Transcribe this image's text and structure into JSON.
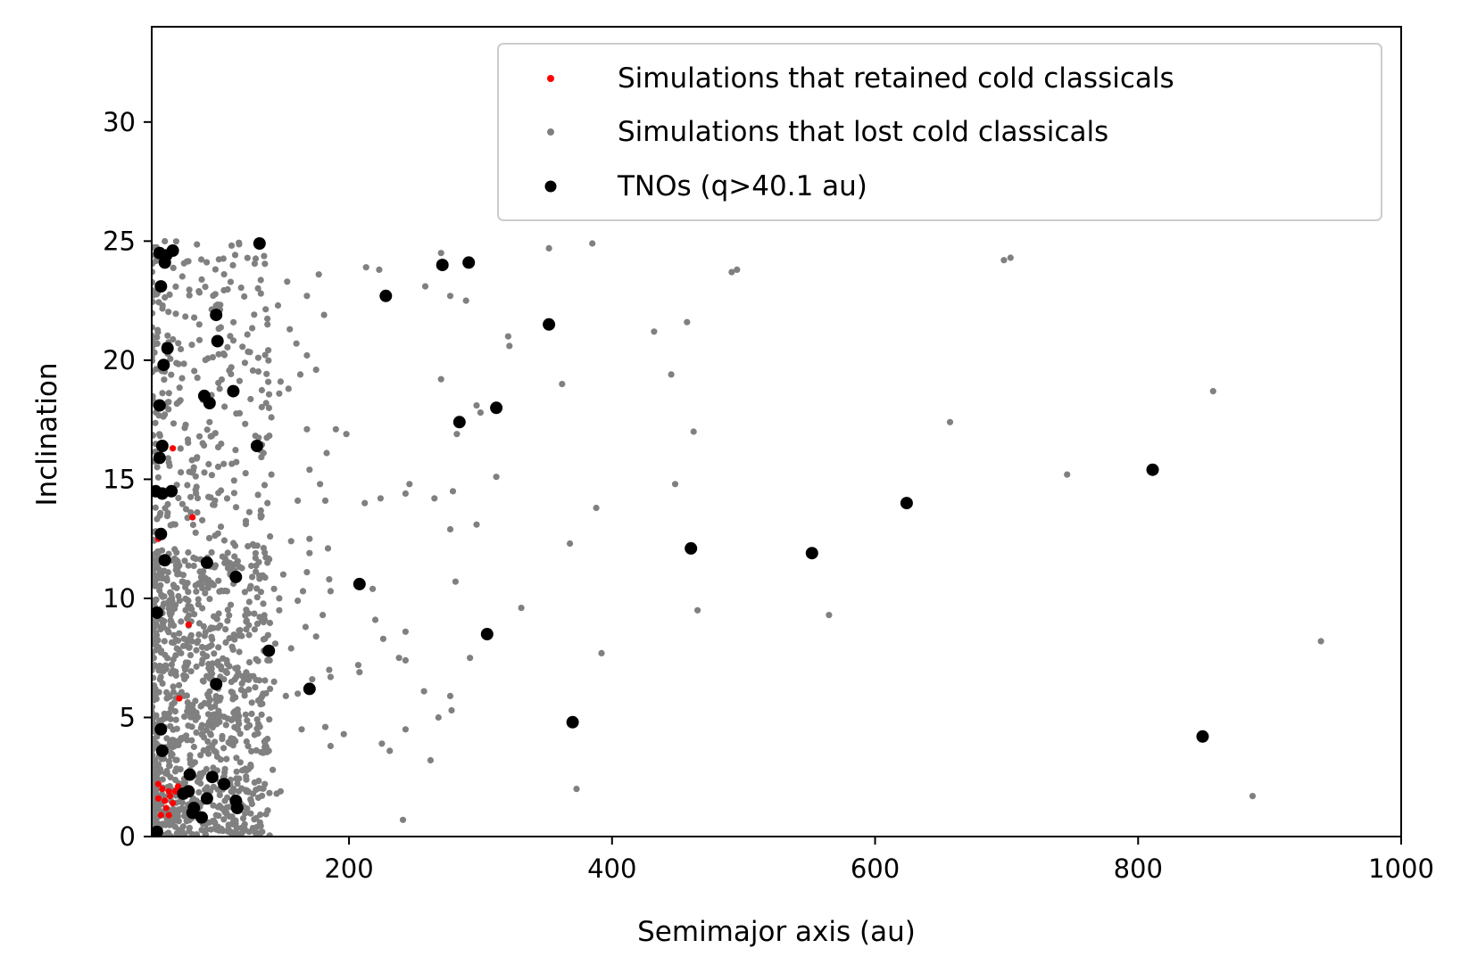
{
  "chart_data": {
    "type": "scatter",
    "title": "",
    "xlabel": "Semimajor axis (au)",
    "ylabel": "Inclination",
    "xlim": [
      50,
      1000
    ],
    "ylim": [
      0,
      34
    ],
    "xticks": [
      200,
      400,
      600,
      800,
      1000
    ],
    "yticks": [
      0,
      5,
      10,
      15,
      20,
      25,
      30
    ],
    "grid": false,
    "legend_position": "top-right",
    "series": [
      {
        "name": "Simulations that lost cold classicals",
        "color": "#808080",
        "marker_size": "small",
        "dense_band": {
          "x_range": [
            50,
            140
          ],
          "y_range": [
            0,
            25
          ],
          "count": 1300,
          "density_description": "heavy concentration at a < 140 au"
        },
        "points": [
          [
            223,
            23.8
          ],
          [
            213,
            23.9
          ],
          [
            177,
            23.6
          ],
          [
            168,
            22.7
          ],
          [
            153,
            23.3
          ],
          [
            138,
            21.5
          ],
          [
            146,
            22.3
          ],
          [
            155,
            21.3
          ],
          [
            160,
            20.7
          ],
          [
            168,
            20.2
          ],
          [
            181,
            21.9
          ],
          [
            175,
            19.6
          ],
          [
            163,
            19.4
          ],
          [
            154,
            18.8
          ],
          [
            148,
            19.1
          ],
          [
            190,
            17.1
          ],
          [
            198,
            16.9
          ],
          [
            168,
            17.1
          ],
          [
            183,
            16.1
          ],
          [
            170,
            15.4
          ],
          [
            178,
            14.8
          ],
          [
            161,
            14.1
          ],
          [
            182,
            14.1
          ],
          [
            212,
            14.0
          ],
          [
            224,
            14.2
          ],
          [
            243,
            14.4
          ],
          [
            246,
            14.8
          ],
          [
            265,
            14.2
          ],
          [
            279,
            14.5
          ],
          [
            282,
            16.9
          ],
          [
            300,
            17.8
          ],
          [
            297,
            18.1
          ],
          [
            321,
            21.0
          ],
          [
            322,
            20.6
          ],
          [
            312,
            15.1
          ],
          [
            270,
            19.2
          ],
          [
            258,
            23.1
          ],
          [
            270,
            24.5
          ],
          [
            277,
            22.7
          ],
          [
            289,
            22.5
          ],
          [
            352,
            24.7
          ],
          [
            385,
            24.9
          ],
          [
            362,
            19.0
          ],
          [
            388,
            13.8
          ],
          [
            368,
            12.3
          ],
          [
            281,
            10.7
          ],
          [
            277,
            12.9
          ],
          [
            297,
            13.1
          ],
          [
            218,
            10.4
          ],
          [
            220,
            9.1
          ],
          [
            226,
            8.3
          ],
          [
            243,
            8.6
          ],
          [
            238,
            7.5
          ],
          [
            243,
            7.4
          ],
          [
            207,
            7.2
          ],
          [
            208,
            6.9
          ],
          [
            185,
            7.0
          ],
          [
            186,
            6.7
          ],
          [
            172,
            6.6
          ],
          [
            175,
            8.4
          ],
          [
            180,
            9.3
          ],
          [
            167,
            8.8
          ],
          [
            185,
            10.8
          ],
          [
            186,
            10.3
          ],
          [
            170,
            11.9
          ],
          [
            184,
            12.1
          ],
          [
            170,
            12.5
          ],
          [
            168,
            11.1
          ],
          [
            165,
            10.3
          ],
          [
            161,
            9.9
          ],
          [
            150,
            11.0
          ],
          [
            156,
            12.4
          ],
          [
            147,
            9.5
          ],
          [
            156,
            7.9
          ],
          [
            152,
            5.9
          ],
          [
            161,
            6.0
          ],
          [
            164,
            4.5
          ],
          [
            182,
            4.6
          ],
          [
            186,
            3.8
          ],
          [
            196,
            4.3
          ],
          [
            231,
            3.6
          ],
          [
            225,
            3.9
          ],
          [
            243,
            4.5
          ],
          [
            257,
            6.1
          ],
          [
            268,
            5.0
          ],
          [
            277,
            5.9
          ],
          [
            278,
            5.3
          ],
          [
            292,
            7.5
          ],
          [
            262,
            3.2
          ],
          [
            241,
            0.7
          ],
          [
            373,
            2.0
          ],
          [
            331,
            9.6
          ],
          [
            392,
            7.7
          ],
          [
            432,
            21.2
          ],
          [
            445,
            19.4
          ],
          [
            448,
            14.8
          ],
          [
            457,
            21.6
          ],
          [
            462,
            17.0
          ],
          [
            465,
            9.5
          ],
          [
            491,
            23.7
          ],
          [
            495,
            23.8
          ],
          [
            565,
            9.3
          ],
          [
            657,
            17.4
          ],
          [
            698,
            24.2
          ],
          [
            703,
            24.3
          ],
          [
            746,
            15.2
          ],
          [
            857,
            18.7
          ],
          [
            887,
            1.7
          ],
          [
            939,
            8.2
          ],
          [
            145,
            1.8
          ],
          [
            148,
            1.9
          ],
          [
            139,
            3.6
          ],
          [
            142,
            2.8
          ],
          [
            136,
            2.2
          ],
          [
            138,
            4.1
          ],
          [
            133,
            5.8
          ],
          [
            140,
            6.2
          ],
          [
            143,
            6.5
          ],
          [
            138,
            7.4
          ],
          [
            144,
            8.1
          ],
          [
            136,
            9.1
          ],
          [
            143,
            10.4
          ],
          [
            147,
            10.0
          ],
          [
            138,
            11.5
          ],
          [
            140,
            12.6
          ],
          [
            133,
            13.4
          ],
          [
            138,
            14.0
          ],
          [
            141,
            15.2
          ],
          [
            135,
            16.1
          ],
          [
            141,
            17.6
          ],
          [
            137,
            18.2
          ],
          [
            147,
            18.6
          ],
          [
            131,
            20.1
          ],
          [
            133,
            22.8
          ],
          [
            130,
            0.4
          ],
          [
            134,
            0.2
          ]
        ]
      },
      {
        "name": "Simulations that retained cold classicals",
        "color": "#ff0000",
        "marker_size": "small",
        "points": [
          [
            66,
            16.3
          ],
          [
            81,
            13.4
          ],
          [
            55,
            12.5
          ],
          [
            78,
            8.9
          ],
          [
            71,
            5.8
          ],
          [
            55,
            2.2
          ],
          [
            58,
            2.0
          ],
          [
            63,
            1.9
          ],
          [
            55,
            1.6
          ],
          [
            60,
            1.5
          ],
          [
            64,
            1.7
          ],
          [
            68,
            1.9
          ],
          [
            61,
            1.2
          ],
          [
            66,
            1.4
          ],
          [
            57,
            0.9
          ],
          [
            63,
            0.9
          ],
          [
            70,
            2.1
          ],
          [
            73,
            1.7
          ]
        ]
      },
      {
        "name": "TNOs (q>40.1 au)",
        "color": "#000000",
        "marker_size": "large",
        "points": [
          [
            56,
            24.5
          ],
          [
            61,
            24.4
          ],
          [
            66,
            24.6
          ],
          [
            60,
            24.1
          ],
          [
            57,
            23.1
          ],
          [
            132,
            24.9
          ],
          [
            228,
            22.7
          ],
          [
            271,
            24.0
          ],
          [
            291,
            24.1
          ],
          [
            99,
            21.9
          ],
          [
            100,
            20.8
          ],
          [
            62,
            20.5
          ],
          [
            59,
            19.8
          ],
          [
            352,
            21.5
          ],
          [
            56,
            18.1
          ],
          [
            90,
            18.5
          ],
          [
            94,
            18.2
          ],
          [
            112,
            18.7
          ],
          [
            284,
            17.4
          ],
          [
            312,
            18.0
          ],
          [
            58,
            16.4
          ],
          [
            56,
            15.9
          ],
          [
            130,
            16.4
          ],
          [
            53,
            14.5
          ],
          [
            58,
            14.4
          ],
          [
            65,
            14.5
          ],
          [
            811,
            15.4
          ],
          [
            624,
            14.0
          ],
          [
            57,
            12.7
          ],
          [
            460,
            12.1
          ],
          [
            552,
            11.9
          ],
          [
            60,
            11.6
          ],
          [
            92,
            11.5
          ],
          [
            114,
            10.9
          ],
          [
            208,
            10.6
          ],
          [
            54,
            9.4
          ],
          [
            305,
            8.5
          ],
          [
            139,
            7.8
          ],
          [
            99,
            6.4
          ],
          [
            170,
            6.2
          ],
          [
            370,
            4.8
          ],
          [
            57,
            4.5
          ],
          [
            58,
            3.6
          ],
          [
            849,
            4.2
          ],
          [
            79,
            2.6
          ],
          [
            96,
            2.5
          ],
          [
            105,
            2.2
          ],
          [
            114,
            1.5
          ],
          [
            115,
            1.2
          ],
          [
            74,
            1.8
          ],
          [
            78,
            1.9
          ],
          [
            92,
            1.6
          ],
          [
            82,
            1.2
          ],
          [
            81,
            1.0
          ],
          [
            88,
            0.8
          ],
          [
            54,
            0.2
          ]
        ]
      }
    ],
    "legend": [
      "Simulations that retained cold classicals",
      "Simulations that lost cold classicals",
      "TNOs (q>40.1 au)"
    ]
  }
}
